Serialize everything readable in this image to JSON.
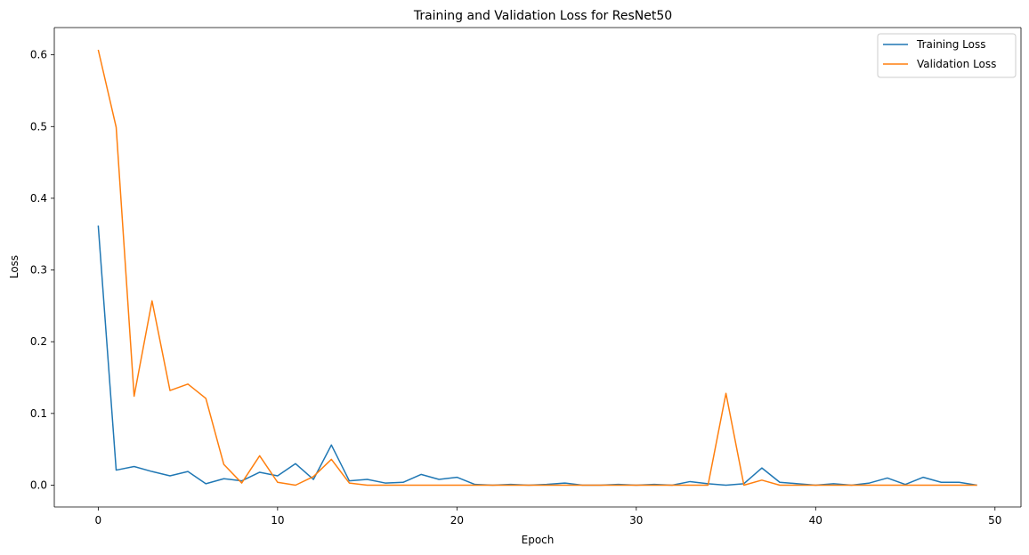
{
  "chart_data": {
    "type": "line",
    "title": "Training and Validation Loss for ResNet50",
    "xlabel": "Epoch",
    "ylabel": "Loss",
    "xlim": [
      -2.45,
      51.45
    ],
    "ylim": [
      -0.0304,
      0.638
    ],
    "xticks": [
      0,
      10,
      20,
      30,
      40,
      50
    ],
    "yticks": [
      0.0,
      0.1,
      0.2,
      0.3,
      0.4,
      0.5,
      0.6
    ],
    "grid": false,
    "legend_position": "top-right",
    "x": [
      0,
      1,
      2,
      3,
      4,
      5,
      6,
      7,
      8,
      9,
      10,
      11,
      12,
      13,
      14,
      15,
      16,
      17,
      18,
      19,
      20,
      21,
      22,
      23,
      24,
      25,
      26,
      27,
      28,
      29,
      30,
      31,
      32,
      33,
      34,
      35,
      36,
      37,
      38,
      39,
      40,
      41,
      42,
      43,
      44,
      45,
      46,
      47,
      48,
      49
    ],
    "series": [
      {
        "name": "Training Loss",
        "color": "#1f77b4",
        "values": [
          0.362,
          0.021,
          0.026,
          0.019,
          0.013,
          0.019,
          0.002,
          0.009,
          0.006,
          0.018,
          0.013,
          0.03,
          0.008,
          0.056,
          0.006,
          0.008,
          0.003,
          0.004,
          0.015,
          0.008,
          0.011,
          0.001,
          0.0,
          0.001,
          0.0,
          0.001,
          0.003,
          0.0,
          0.0,
          0.001,
          0.0,
          0.001,
          0.0,
          0.005,
          0.002,
          0.0,
          0.002,
          0.024,
          0.004,
          0.002,
          0.0,
          0.002,
          0.0,
          0.003,
          0.01,
          0.001,
          0.011,
          0.004,
          0.004,
          0.0
        ]
      },
      {
        "name": "Validation Loss",
        "color": "#ff7f0e",
        "values": [
          0.607,
          0.499,
          0.124,
          0.257,
          0.132,
          0.141,
          0.121,
          0.029,
          0.003,
          0.041,
          0.004,
          0.0,
          0.012,
          0.036,
          0.003,
          0.0,
          0.0,
          0.0,
          0.0,
          0.0,
          0.0,
          0.0,
          0.0,
          0.0,
          0.0,
          0.0,
          0.0,
          0.0,
          0.0,
          0.0,
          0.0,
          0.0,
          0.0,
          0.0,
          0.0,
          0.128,
          0.0,
          0.007,
          0.0,
          0.0,
          0.0,
          0.0,
          0.0,
          0.0,
          0.0,
          0.0,
          0.0,
          0.0,
          0.0,
          0.0
        ]
      }
    ]
  }
}
